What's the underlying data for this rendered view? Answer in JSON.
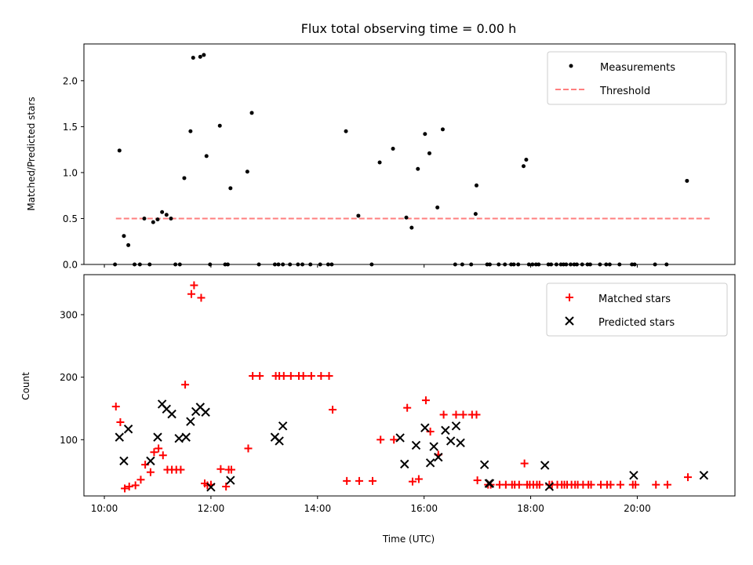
{
  "figure": {
    "title": "Flux total observing time = 0.00 h"
  },
  "chart_data": [
    {
      "type": "scatter",
      "ylabel": "Matched/Predicted stars",
      "xlabel": "",
      "xlim": [
        "09:37",
        "21:50"
      ],
      "ylim": [
        0,
        2.4
      ],
      "yticks": [
        0.0,
        0.5,
        1.0,
        1.5,
        2.0
      ],
      "ytick_labels": [
        "0.0",
        "0.5",
        "1.0",
        "1.5",
        "2.0"
      ],
      "grid": false,
      "legend": {
        "placement": "top-right",
        "entries": [
          "Measurements",
          "Threshold"
        ]
      },
      "colors": {
        "measurements": "#000000",
        "threshold": "#ff7f7f"
      },
      "series": [
        {
          "name": "Measurements",
          "marker": "dot",
          "x": [
            "10:12",
            "10:17",
            "10:22",
            "10:27",
            "10:34",
            "10:40",
            "10:45",
            "10:51",
            "10:55",
            "11:00",
            "11:05",
            "11:10",
            "11:15",
            "11:20",
            "11:25",
            "11:30",
            "11:37",
            "11:40",
            "11:48",
            "11:52",
            "11:55",
            "11:59",
            "12:10",
            "12:16",
            "12:19",
            "12:22",
            "12:41",
            "12:46",
            "12:54",
            "13:12",
            "13:16",
            "13:21",
            "13:29",
            "13:38",
            "13:43",
            "13:52",
            "14:03",
            "14:12",
            "14:16",
            "14:32",
            "14:46",
            "15:01",
            "15:10",
            "15:25",
            "15:40",
            "15:46",
            "15:53",
            "16:01",
            "16:06",
            "16:15",
            "16:21",
            "16:35",
            "16:43",
            "16:53",
            "16:58",
            "16:59",
            "17:11",
            "17:14",
            "17:24",
            "17:31",
            "17:38",
            "17:41",
            "17:46",
            "17:52",
            "17:55",
            "17:58",
            "18:02",
            "18:06",
            "18:09",
            "18:20",
            "18:23",
            "18:29",
            "18:34",
            "18:37",
            "18:40",
            "18:45",
            "18:49",
            "18:52",
            "18:58",
            "19:04",
            "19:07",
            "19:18",
            "19:25",
            "19:29",
            "19:40",
            "19:54",
            "19:57",
            "20:20",
            "20:33",
            "20:56"
          ],
          "y": [
            0,
            1.24,
            0.31,
            0.21,
            0,
            0,
            0.5,
            0,
            0.46,
            0.49,
            0.57,
            0.54,
            0.5,
            0,
            0,
            0.94,
            1.45,
            2.25,
            2.26,
            2.28,
            1.18,
            0,
            1.51,
            0,
            0,
            0.83,
            1.01,
            1.65,
            0,
            0,
            0,
            0,
            0,
            0,
            0,
            0,
            0,
            0,
            0,
            1.45,
            0.53,
            0,
            1.11,
            1.26,
            0.51,
            0.4,
            1.04,
            1.42,
            1.21,
            0.62,
            1.47,
            0,
            0,
            0,
            0.55,
            0.86,
            0,
            0,
            0,
            0,
            0,
            0,
            0,
            1.07,
            1.14,
            0,
            0,
            0,
            0,
            0,
            0,
            0,
            0,
            0,
            0,
            0,
            0,
            0,
            0,
            0,
            0,
            0,
            0,
            0,
            0,
            0,
            0,
            0,
            0,
            0.91
          ]
        },
        {
          "name": "Threshold",
          "style": "dashed",
          "x": [
            "10:13",
            "21:22"
          ],
          "y": [
            0.5,
            0.5
          ]
        }
      ]
    },
    {
      "type": "scatter",
      "xlabel": "Time (UTC)",
      "ylabel": "Count",
      "xlim": [
        "09:37",
        "21:50"
      ],
      "ylim": [
        10,
        364
      ],
      "yticks": [
        100,
        200,
        300
      ],
      "ytick_labels": [
        "100",
        "200",
        "300"
      ],
      "xticks": [
        "10:00",
        "12:00",
        "14:00",
        "16:00",
        "18:00",
        "20:00"
      ],
      "xtick_labels": [
        "10:00",
        "12:00",
        "14:00",
        "16:00",
        "18:00",
        "20:00"
      ],
      "grid": false,
      "legend": {
        "placement": "top-right",
        "entries": [
          "Matched stars",
          "Predicted stars"
        ]
      },
      "colors": {
        "matched": "#ff0000",
        "predicted": "#000000"
      },
      "series": [
        {
          "name": "Matched stars",
          "marker": "plus",
          "x": [
            "10:13",
            "10:18",
            "10:23",
            "10:28",
            "10:35",
            "10:41",
            "10:46",
            "10:52",
            "10:56",
            "11:01",
            "11:06",
            "11:11",
            "11:16",
            "11:21",
            "11:26",
            "11:31",
            "11:38",
            "11:41",
            "11:49",
            "11:53",
            "11:56",
            "12:00",
            "12:11",
            "12:17",
            "12:20",
            "12:23",
            "12:42",
            "12:47",
            "12:55",
            "13:13",
            "13:17",
            "13:22",
            "13:30",
            "13:39",
            "13:44",
            "13:53",
            "14:04",
            "14:13",
            "14:17",
            "14:33",
            "14:47",
            "15:02",
            "15:11",
            "15:26",
            "15:41",
            "15:47",
            "15:54",
            "16:02",
            "16:07",
            "16:16",
            "16:22",
            "16:36",
            "16:44",
            "16:54",
            "16:59",
            "17:00",
            "17:12",
            "17:15",
            "17:25",
            "17:32",
            "17:39",
            "17:42",
            "17:47",
            "17:53",
            "17:56",
            "17:59",
            "18:03",
            "18:07",
            "18:10",
            "18:21",
            "18:24",
            "18:30",
            "18:35",
            "18:38",
            "18:41",
            "18:46",
            "18:50",
            "18:53",
            "18:59",
            "19:05",
            "19:08",
            "19:19",
            "19:26",
            "19:30",
            "19:41",
            "19:55",
            "19:58",
            "20:21",
            "20:34",
            "20:57"
          ],
          "y": [
            153,
            128,
            22,
            25,
            27,
            36,
            60,
            48,
            80,
            86,
            75,
            52,
            52,
            52,
            52,
            188,
            333,
            347,
            327,
            30,
            27,
            28,
            53,
            25,
            52,
            52,
            86,
            202,
            202,
            202,
            202,
            202,
            202,
            202,
            202,
            202,
            202,
            202,
            148,
            34,
            34,
            34,
            100,
            100,
            151,
            33,
            37,
            163,
            113,
            76,
            140,
            140,
            140,
            140,
            140,
            35,
            28,
            28,
            28,
            28,
            28,
            28,
            28,
            62,
            28,
            28,
            28,
            28,
            28,
            28,
            28,
            28,
            28,
            28,
            28,
            28,
            28,
            28,
            28,
            28,
            28,
            28,
            28,
            28,
            28,
            28,
            28,
            28,
            28,
            40
          ]
        },
        {
          "name": "Predicted stars",
          "marker": "x",
          "x": [
            "10:17",
            "10:22",
            "10:27",
            "10:52",
            "11:00",
            "11:05",
            "11:10",
            "11:16",
            "11:24",
            "11:32",
            "11:37",
            "11:43",
            "11:48",
            "11:54",
            "12:00",
            "12:22",
            "13:12",
            "13:17",
            "13:21",
            "15:33",
            "15:38",
            "15:51",
            "16:01",
            "16:07",
            "16:11",
            "16:16",
            "16:24",
            "16:30",
            "16:36",
            "16:41",
            "17:08",
            "17:13",
            "17:14",
            "18:16",
            "18:21",
            "19:56",
            "21:15"
          ],
          "y": [
            104,
            66,
            117,
            66,
            104,
            157,
            149,
            141,
            102,
            104,
            129,
            145,
            152,
            144,
            24,
            35,
            104,
            98,
            122,
            103,
            61,
            91,
            119,
            63,
            89,
            72,
            115,
            98,
            122,
            95,
            60,
            30,
            30,
            59,
            25,
            43,
            43
          ]
        }
      ]
    }
  ]
}
